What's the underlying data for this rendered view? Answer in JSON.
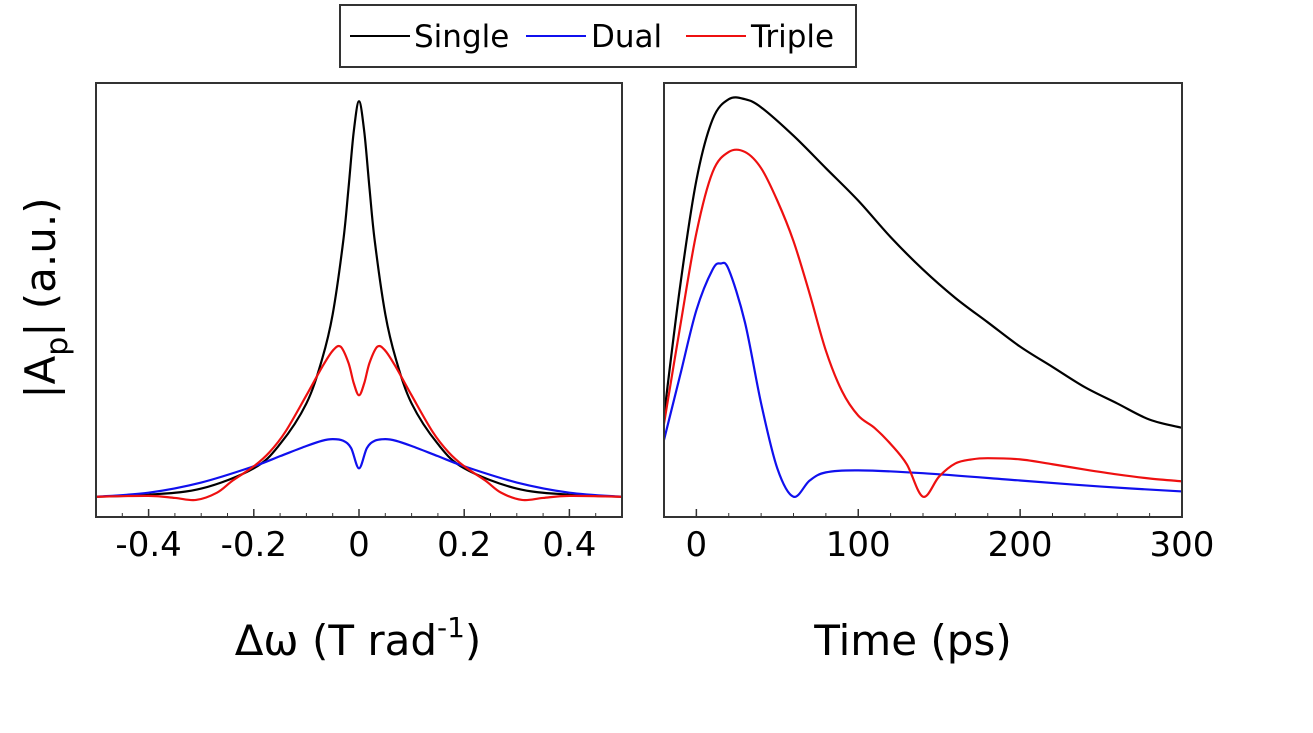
{
  "legend": [
    {
      "label": "Single",
      "color": "#000000"
    },
    {
      "label": "Dual",
      "color": "#1010ee"
    },
    {
      "label": "Triple",
      "color": "#ee1010"
    }
  ],
  "y_axis_label": {
    "prefix": "|A",
    "subscript": "p",
    "suffix": "| (a.u.)"
  },
  "chart_data": [
    {
      "type": "line",
      "id": "spectrum",
      "xlabel": {
        "main": "Δω (T rad",
        "sup": "-1",
        "close": ")"
      },
      "ylabel": "|Ap| (a.u.)",
      "xlim": [
        -0.5,
        0.5
      ],
      "ylim": [
        -0.05,
        1.02
      ],
      "xticks": [
        -0.4,
        -0.2,
        0,
        0.2,
        0.4
      ],
      "xtick_labels": [
        "-0.4",
        "-0.2",
        "0",
        "0.2",
        "0.4"
      ],
      "series": [
        {
          "name": "Single",
          "color": "#000000",
          "x": [
            -0.5,
            -0.4,
            -0.3,
            -0.2,
            -0.15,
            -0.1,
            -0.07,
            -0.05,
            -0.03,
            -0.02,
            -0.01,
            0,
            0.01,
            0.02,
            0.03,
            0.05,
            0.07,
            0.1,
            0.15,
            0.2,
            0.3,
            0.4,
            0.5
          ],
          "y": [
            0,
            0.005,
            0.02,
            0.07,
            0.13,
            0.23,
            0.34,
            0.45,
            0.63,
            0.76,
            0.9,
            0.975,
            0.9,
            0.76,
            0.63,
            0.45,
            0.34,
            0.23,
            0.13,
            0.07,
            0.02,
            0.005,
            0
          ]
        },
        {
          "name": "Dual",
          "color": "#1010ee",
          "x": [
            -0.5,
            -0.4,
            -0.3,
            -0.2,
            -0.15,
            -0.1,
            -0.07,
            -0.05,
            -0.03,
            -0.015,
            0,
            0.015,
            0.03,
            0.05,
            0.07,
            0.1,
            0.15,
            0.2,
            0.3,
            0.4,
            0.5
          ],
          "y": [
            0,
            0.01,
            0.035,
            0.075,
            0.1,
            0.125,
            0.138,
            0.142,
            0.138,
            0.12,
            0.07,
            0.12,
            0.138,
            0.142,
            0.138,
            0.125,
            0.1,
            0.075,
            0.035,
            0.01,
            0
          ]
        },
        {
          "name": "Triple",
          "color": "#ee1010",
          "x": [
            -0.5,
            -0.4,
            -0.35,
            -0.31,
            -0.27,
            -0.24,
            -0.2,
            -0.17,
            -0.14,
            -0.1,
            -0.07,
            -0.05,
            -0.035,
            -0.02,
            -0.01,
            0,
            0.01,
            0.02,
            0.035,
            0.05,
            0.07,
            0.1,
            0.14,
            0.17,
            0.2,
            0.24,
            0.27,
            0.31,
            0.35,
            0.4,
            0.5
          ],
          "y": [
            0,
            0.002,
            -0.003,
            -0.008,
            0.01,
            0.04,
            0.075,
            0.11,
            0.16,
            0.25,
            0.32,
            0.36,
            0.37,
            0.33,
            0.28,
            0.25,
            0.28,
            0.33,
            0.37,
            0.36,
            0.32,
            0.25,
            0.16,
            0.11,
            0.075,
            0.04,
            0.01,
            -0.008,
            -0.003,
            0.002,
            0
          ]
        }
      ]
    },
    {
      "type": "line",
      "id": "time",
      "xlabel": "Time (ps)",
      "xlim": [
        -20,
        300
      ],
      "ylim": [
        -0.05,
        1.02
      ],
      "xticks": [
        0,
        100,
        200,
        300
      ],
      "xtick_labels": [
        "0",
        "100",
        "200",
        "300"
      ],
      "series": [
        {
          "name": "Single",
          "color": "#000000",
          "x": [
            -20,
            -10,
            0,
            10,
            20,
            30,
            40,
            60,
            80,
            100,
            120,
            140,
            160,
            180,
            200,
            220,
            240,
            260,
            280,
            300
          ],
          "y": [
            0.2,
            0.52,
            0.78,
            0.93,
            0.98,
            0.98,
            0.96,
            0.89,
            0.81,
            0.73,
            0.64,
            0.56,
            0.49,
            0.43,
            0.37,
            0.32,
            0.27,
            0.23,
            0.19,
            0.17
          ]
        },
        {
          "name": "Dual",
          "color": "#1010ee",
          "x": [
            -20,
            -10,
            0,
            10,
            15,
            20,
            30,
            40,
            50,
            60,
            70,
            80,
            100,
            140,
            200,
            250,
            300
          ],
          "y": [
            0.14,
            0.3,
            0.46,
            0.56,
            0.575,
            0.56,
            0.43,
            0.23,
            0.07,
            0,
            0.04,
            0.06,
            0.065,
            0.058,
            0.04,
            0.025,
            0.013
          ]
        },
        {
          "name": "Triple",
          "color": "#ee1010",
          "x": [
            -20,
            -10,
            0,
            10,
            20,
            30,
            40,
            50,
            60,
            70,
            80,
            90,
            100,
            110,
            120,
            130,
            140,
            150,
            160,
            170,
            180,
            200,
            220,
            240,
            260,
            280,
            300
          ],
          "y": [
            0.18,
            0.42,
            0.65,
            0.8,
            0.85,
            0.85,
            0.81,
            0.73,
            0.63,
            0.5,
            0.36,
            0.26,
            0.2,
            0.17,
            0.13,
            0.08,
            0,
            0.05,
            0.082,
            0.092,
            0.095,
            0.092,
            0.08,
            0.067,
            0.055,
            0.045,
            0.038
          ]
        }
      ]
    }
  ]
}
